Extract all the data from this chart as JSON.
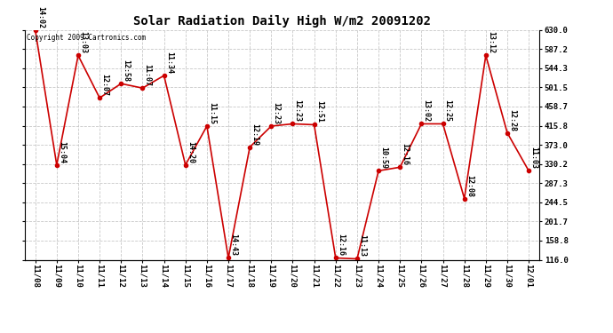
{
  "title": "Solar Radiation Daily High W/m2 20091202",
  "copyright": "Copyright 2009 Cartronics.com",
  "dates": [
    "11/08",
    "11/09",
    "11/10",
    "11/11",
    "11/12",
    "11/13",
    "11/14",
    "11/15",
    "11/16",
    "11/17",
    "11/18",
    "11/19",
    "11/20",
    "11/21",
    "11/22",
    "11/23",
    "11/24",
    "11/25",
    "11/26",
    "11/27",
    "11/28",
    "11/29",
    "11/30",
    "12/01"
  ],
  "values": [
    630,
    328,
    573,
    478,
    510,
    500,
    528,
    328,
    415,
    120,
    368,
    415,
    420,
    418,
    120,
    118,
    315,
    323,
    420,
    420,
    253,
    573,
    400,
    315
  ],
  "labels": [
    "14:02",
    "15:04",
    "13:03",
    "12:07",
    "12:58",
    "11:07",
    "11:34",
    "14:20",
    "11:15",
    "14:43",
    "12:19",
    "12:23",
    "12:23",
    "12:51",
    "12:16",
    "11:13",
    "10:59",
    "12:16",
    "13:02",
    "12:25",
    "12:08",
    "13:12",
    "12:28",
    "11:03"
  ],
  "ylim_min": 116.0,
  "ylim_max": 630.0,
  "yticks": [
    116.0,
    158.8,
    201.7,
    244.5,
    287.3,
    330.2,
    373.0,
    415.8,
    458.7,
    501.5,
    544.3,
    587.2,
    630.0
  ],
  "ytick_labels": [
    "116.0",
    "158.8",
    "201.7",
    "244.5",
    "287.3",
    "330.2",
    "373.0",
    "415.8",
    "458.7",
    "501.5",
    "544.3",
    "587.2",
    "630.0"
  ],
  "line_color": "#cc0000",
  "bg_color": "#ffffff",
  "grid_color": "#c8c8c8",
  "title_fontsize": 10,
  "annot_fontsize": 6.0,
  "tick_fontsize": 6.5,
  "copyright_fontsize": 5.5
}
